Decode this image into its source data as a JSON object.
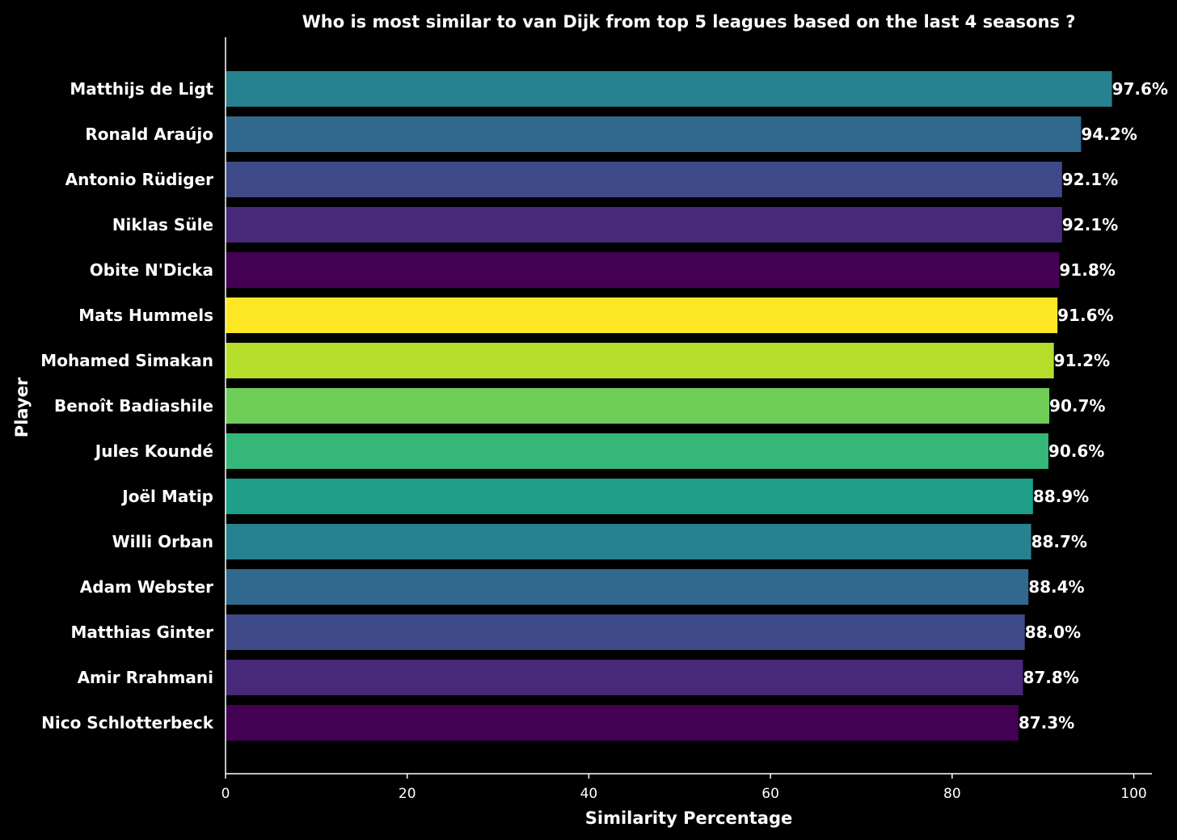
{
  "chart_data": {
    "type": "bar",
    "orientation": "horizontal",
    "title": "Who is most similar to van Dijk from top 5 leagues based on the last 4 seasons ?",
    "xlabel": "Similarity Percentage",
    "ylabel": "Player",
    "xlim": [
      0,
      102
    ],
    "xticks": [
      0,
      20,
      40,
      60,
      80,
      100
    ],
    "xtick_labels": [
      "0",
      "20",
      "40",
      "60",
      "80",
      "100"
    ],
    "grid": false,
    "legend": "none",
    "background": "#000000",
    "categories": [
      "Matthijs de Ligt",
      "Ronald Araújo",
      "Antonio Rüdiger",
      "Niklas Süle",
      "Obite N'Dicka",
      "Mats Hummels",
      "Mohamed Simakan",
      "Benoît Badiashile",
      "Jules Koundé",
      "Joël Matip",
      "Willi Orban",
      "Adam Webster",
      "Matthias Ginter",
      "Amir Rrahmani",
      "Nico Schlotterbeck"
    ],
    "values": [
      97.6,
      94.2,
      92.1,
      92.1,
      91.8,
      91.6,
      91.2,
      90.7,
      90.6,
      88.9,
      88.7,
      88.4,
      88.0,
      87.8,
      87.3
    ],
    "value_labels": [
      "97.6%",
      "94.2%",
      "92.1%",
      "92.1%",
      "91.8%",
      "91.6%",
      "91.2%",
      "90.7%",
      "90.6%",
      "88.9%",
      "88.7%",
      "88.4%",
      "88.0%",
      "87.8%",
      "87.3%"
    ],
    "colors": [
      "#26828e",
      "#31688e",
      "#3e4989",
      "#482878",
      "#440154",
      "#fde725",
      "#b5de2b",
      "#6ece58",
      "#35b779",
      "#1f9e89",
      "#26828e",
      "#31688e",
      "#3e4989",
      "#482878",
      "#440154"
    ]
  }
}
